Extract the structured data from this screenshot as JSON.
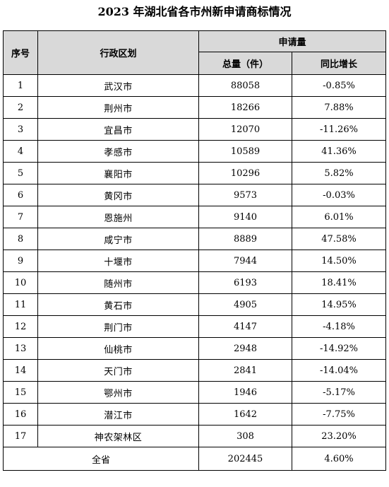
{
  "title": "2023 年湖北省各市州新申请商标情况",
  "headers": {
    "index": "序号",
    "region": "行政区划",
    "group": "申请量",
    "total": "总量（件）",
    "growth": "同比增长"
  },
  "rows": [
    {
      "index": "1",
      "region": "武汉市",
      "total": "88058",
      "growth": "-0.85%"
    },
    {
      "index": "2",
      "region": "荆州市",
      "total": "18266",
      "growth": "7.88%"
    },
    {
      "index": "3",
      "region": "宜昌市",
      "total": "12070",
      "growth": "-11.26%"
    },
    {
      "index": "4",
      "region": "孝感市",
      "total": "10589",
      "growth": "41.36%"
    },
    {
      "index": "5",
      "region": "襄阳市",
      "total": "10296",
      "growth": "5.82%"
    },
    {
      "index": "6",
      "region": "黄冈市",
      "total": "9573",
      "growth": "-0.03%"
    },
    {
      "index": "7",
      "region": "恩施州",
      "total": "9140",
      "growth": "6.01%"
    },
    {
      "index": "8",
      "region": "咸宁市",
      "total": "8889",
      "growth": "47.58%"
    },
    {
      "index": "9",
      "region": "十堰市",
      "total": "7944",
      "growth": "14.50%"
    },
    {
      "index": "10",
      "region": "随州市",
      "total": "6193",
      "growth": "18.41%"
    },
    {
      "index": "11",
      "region": "黄石市",
      "total": "4905",
      "growth": "14.95%"
    },
    {
      "index": "12",
      "region": "荆门市",
      "total": "4147",
      "growth": "-4.18%"
    },
    {
      "index": "13",
      "region": "仙桃市",
      "total": "2948",
      "growth": "-14.92%"
    },
    {
      "index": "14",
      "region": "天门市",
      "total": "2841",
      "growth": "-14.04%"
    },
    {
      "index": "15",
      "region": "鄂州市",
      "total": "1946",
      "growth": "-5.17%"
    },
    {
      "index": "16",
      "region": "潜江市",
      "total": "1642",
      "growth": "-7.75%"
    },
    {
      "index": "17",
      "region": "神农架林区",
      "total": "308",
      "growth": "23.20%"
    }
  ],
  "summary": {
    "label": "全省",
    "total": "202445",
    "growth": "4.60%"
  },
  "colors": {
    "header_bg": "#d9d9d9",
    "border": "#000000",
    "text": "#000000"
  }
}
